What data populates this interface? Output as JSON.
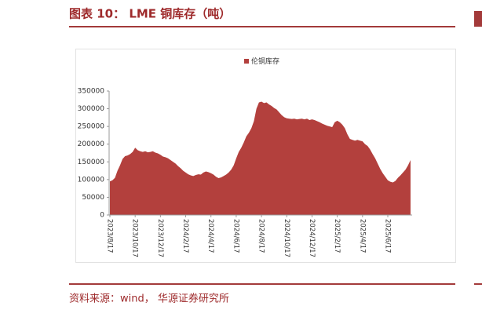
{
  "chart_data": {
    "type": "area",
    "title": "图表 10： LME 铜库存（吨）",
    "source": "资料来源：wind， 华源证券研究所",
    "categories": [
      "2023/8/17",
      null,
      null,
      null,
      null,
      null,
      null,
      null,
      null,
      null,
      "2023/10/17",
      null,
      null,
      null,
      null,
      null,
      null,
      null,
      null,
      null,
      "2023/12/17",
      null,
      null,
      null,
      null,
      null,
      null,
      null,
      null,
      null,
      "2024/2/17",
      null,
      null,
      null,
      null,
      null,
      null,
      null,
      null,
      null,
      "2024/4/17",
      null,
      null,
      null,
      null,
      null,
      null,
      null,
      null,
      null,
      "2024/6/17",
      null,
      null,
      null,
      null,
      null,
      null,
      null,
      null,
      null,
      "2024/8/17",
      null,
      null,
      null,
      null,
      null,
      null,
      null,
      null,
      null,
      "2024/10/17",
      null,
      null,
      null,
      null,
      null,
      null,
      null,
      null,
      null,
      "2024/12/17",
      null,
      null,
      null,
      null,
      null,
      null,
      null,
      null,
      null,
      "2025/2/17",
      null,
      null,
      null,
      null,
      null,
      null,
      null,
      null,
      null,
      "2025/4/17",
      null,
      null,
      null,
      null,
      null,
      null,
      null,
      null,
      null,
      "2025/6/17",
      null,
      null,
      null,
      null,
      null,
      null,
      null,
      null,
      null
    ],
    "series": [
      {
        "name": "伦铜库存",
        "color": "#b3403d",
        "values": [
          95000,
          98000,
          105000,
          125000,
          140000,
          158000,
          166000,
          168000,
          172000,
          178000,
          190000,
          183000,
          180000,
          178000,
          180000,
          177000,
          178000,
          180000,
          176000,
          174000,
          170000,
          165000,
          163000,
          160000,
          155000,
          150000,
          145000,
          138000,
          132000,
          125000,
          120000,
          115000,
          112000,
          110000,
          113000,
          115000,
          114000,
          120000,
          123000,
          121000,
          118000,
          114000,
          108000,
          104000,
          106000,
          110000,
          114000,
          120000,
          128000,
          140000,
          160000,
          178000,
          190000,
          205000,
          222000,
          232000,
          245000,
          265000,
          300000,
          318000,
          320000,
          316000,
          318000,
          312000,
          308000,
          302000,
          298000,
          290000,
          282000,
          276000,
          273000,
          272000,
          271000,
          272000,
          270000,
          271000,
          272000,
          270000,
          272000,
          268000,
          270000,
          268000,
          265000,
          262000,
          258000,
          255000,
          252000,
          250000,
          248000,
          262000,
          266000,
          262000,
          255000,
          245000,
          228000,
          215000,
          212000,
          210000,
          212000,
          210000,
          208000,
          200000,
          195000,
          185000,
          172000,
          160000,
          145000,
          130000,
          118000,
          108000,
          98000,
          94000,
          92000,
          96000,
          105000,
          112000,
          120000,
          128000,
          140000,
          155000
        ]
      }
    ],
    "ylim": [
      0,
      350000
    ],
    "yticks": [
      0,
      50000,
      100000,
      150000,
      200000,
      250000,
      300000,
      350000
    ]
  }
}
